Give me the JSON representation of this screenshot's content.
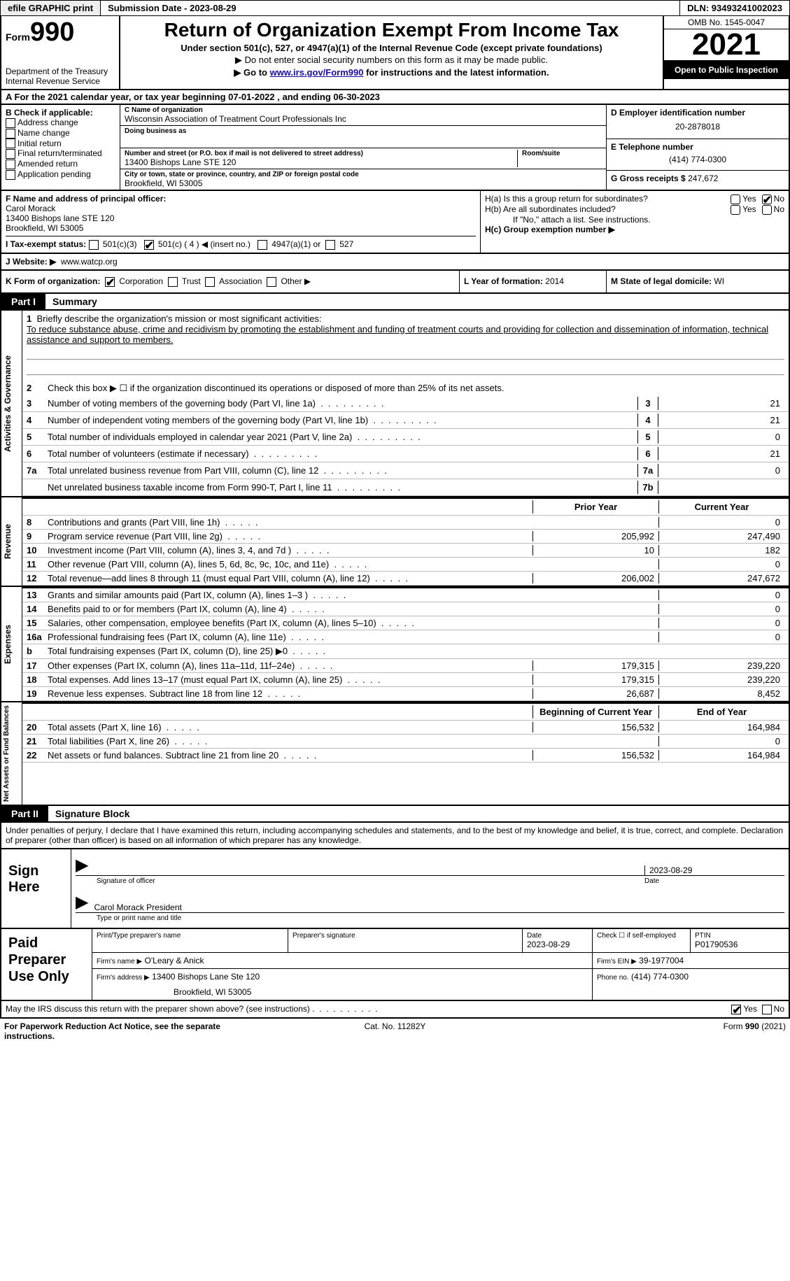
{
  "top": {
    "efile": "efile GRAPHIC print",
    "submission_label": "Submission Date - 2023-08-29",
    "dln": "DLN: 93493241002023"
  },
  "header": {
    "form_small": "Form",
    "form_big": "990",
    "title": "Return of Organization Exempt From Income Tax",
    "sub1": "Under section 501(c), 527, or 4947(a)(1) of the Internal Revenue Code (except private foundations)",
    "sub2": "▶ Do not enter social security numbers on this form as it may be made public.",
    "sub3_a": "▶ Go to ",
    "sub3_link": "www.irs.gov/Form990",
    "sub3_b": " for instructions and the latest information.",
    "dept": "Department of the Treasury",
    "irs": "Internal Revenue Service",
    "omb": "OMB No. 1545-0047",
    "year": "2021",
    "open": "Open to Public Inspection"
  },
  "row_a": "A For the 2021 calendar year, or tax year beginning 07-01-2022    , and ending 06-30-2023",
  "b": {
    "head": "B Check if applicable:",
    "items": [
      "Address change",
      "Name change",
      "Initial return",
      "Final return/terminated",
      "Amended return",
      "Application pending"
    ]
  },
  "c": {
    "name_lbl": "C Name of organization",
    "name": "Wisconsin Association of Treatment Court Professionals Inc",
    "dba_lbl": "Doing business as",
    "dba": "",
    "addr_lbl": "Number and street (or P.O. box if mail is not delivered to street address)",
    "addr": "13400 Bishops Lane STE 120",
    "room_lbl": "Room/suite",
    "room": "",
    "city_lbl": "City or town, state or province, country, and ZIP or foreign postal code",
    "city": "Brookfield, WI  53005"
  },
  "d": {
    "ein_lbl": "D Employer identification number",
    "ein": "20-2878018",
    "phone_lbl": "E Telephone number",
    "phone": "(414) 774-0300",
    "gross_lbl": "G Gross receipts $",
    "gross": "247,672"
  },
  "f": {
    "lbl": "F  Name and address of principal officer:",
    "name": "Carol Morack",
    "addr1": "13400 Bishops lane STE 120",
    "addr2": "Brookfield, WI  53005"
  },
  "h": {
    "a_lbl": "H(a)  Is this a group return for subordinates?",
    "b_lbl": "H(b)  Are all subordinates included?",
    "b_note": "If \"No,\" attach a list. See instructions.",
    "c_lbl": "H(c)  Group exemption number ▶",
    "yes": "Yes",
    "no": "No"
  },
  "i": {
    "lbl": "I   Tax-exempt status:",
    "c3": "501(c)(3)",
    "c": "501(c) ( 4 ) ◀ (insert no.)",
    "4947": "4947(a)(1) or",
    "527": "527"
  },
  "j": {
    "lbl": "J   Website: ▶",
    "val": "www.watcp.org"
  },
  "k": {
    "lbl": "K Form of organization:",
    "corp": "Corporation",
    "trust": "Trust",
    "assoc": "Association",
    "other": "Other ▶"
  },
  "l": {
    "lbl": "L Year of formation:",
    "val": "2014"
  },
  "m": {
    "lbl": "M State of legal domicile:",
    "val": "WI"
  },
  "part1": {
    "tag": "Part I",
    "title": "Summary"
  },
  "summary": {
    "side1": "Activities & Governance",
    "side2": "Revenue",
    "side3": "Expenses",
    "side4": "Net Assets or Fund Balances",
    "mission_lbl": "1  Briefly describe the organization's mission or most significant activities:",
    "mission": "To reduce substance abuse, crime and recidivism by promoting the establishment and funding of treatment courts and providing for collection and dissemination of information, technical assistance and support to members.",
    "line2": "Check this box ▶ ☐ if the organization discontinued its operations or disposed of more than 25% of its net assets.",
    "rows_a": [
      {
        "n": "3",
        "t": "Number of voting members of the governing body (Part VI, line 1a)",
        "c": "3",
        "v": "21"
      },
      {
        "n": "4",
        "t": "Number of independent voting members of the governing body (Part VI, line 1b)",
        "c": "4",
        "v": "21"
      },
      {
        "n": "5",
        "t": "Total number of individuals employed in calendar year 2021 (Part V, line 2a)",
        "c": "5",
        "v": "0"
      },
      {
        "n": "6",
        "t": "Total number of volunteers (estimate if necessary)",
        "c": "6",
        "v": "21"
      },
      {
        "n": "7a",
        "t": "Total unrelated business revenue from Part VIII, column (C), line 12",
        "c": "7a",
        "v": "0"
      },
      {
        "n": "",
        "t": "Net unrelated business taxable income from Form 990-T, Part I, line 11",
        "c": "7b",
        "v": ""
      }
    ],
    "head_prior": "Prior Year",
    "head_current": "Current Year",
    "rows_rev": [
      {
        "n": "8",
        "t": "Contributions and grants (Part VIII, line 1h)",
        "p": "",
        "c": "0"
      },
      {
        "n": "9",
        "t": "Program service revenue (Part VIII, line 2g)",
        "p": "205,992",
        "c": "247,490"
      },
      {
        "n": "10",
        "t": "Investment income (Part VIII, column (A), lines 3, 4, and 7d )",
        "p": "10",
        "c": "182"
      },
      {
        "n": "11",
        "t": "Other revenue (Part VIII, column (A), lines 5, 6d, 8c, 9c, 10c, and 11e)",
        "p": "",
        "c": "0"
      },
      {
        "n": "12",
        "t": "Total revenue—add lines 8 through 11 (must equal Part VIII, column (A), line 12)",
        "p": "206,002",
        "c": "247,672"
      }
    ],
    "rows_exp": [
      {
        "n": "13",
        "t": "Grants and similar amounts paid (Part IX, column (A), lines 1–3 )",
        "p": "",
        "c": "0"
      },
      {
        "n": "14",
        "t": "Benefits paid to or for members (Part IX, column (A), line 4)",
        "p": "",
        "c": "0"
      },
      {
        "n": "15",
        "t": "Salaries, other compensation, employee benefits (Part IX, column (A), lines 5–10)",
        "p": "",
        "c": "0"
      },
      {
        "n": "16a",
        "t": "Professional fundraising fees (Part IX, column (A), line 11e)",
        "p": "",
        "c": "0"
      },
      {
        "n": "b",
        "t": "Total fundraising expenses (Part IX, column (D), line 25) ▶0",
        "p": "shade",
        "c": "shade"
      },
      {
        "n": "17",
        "t": "Other expenses (Part IX, column (A), lines 11a–11d, 11f–24e)",
        "p": "179,315",
        "c": "239,220"
      },
      {
        "n": "18",
        "t": "Total expenses. Add lines 13–17 (must equal Part IX, column (A), line 25)",
        "p": "179,315",
        "c": "239,220"
      },
      {
        "n": "19",
        "t": "Revenue less expenses. Subtract line 18 from line 12",
        "p": "26,687",
        "c": "8,452"
      }
    ],
    "head_begin": "Beginning of Current Year",
    "head_end": "End of Year",
    "rows_net": [
      {
        "n": "20",
        "t": "Total assets (Part X, line 16)",
        "p": "156,532",
        "c": "164,984"
      },
      {
        "n": "21",
        "t": "Total liabilities (Part X, line 26)",
        "p": "",
        "c": "0"
      },
      {
        "n": "22",
        "t": "Net assets or fund balances. Subtract line 21 from line 20",
        "p": "156,532",
        "c": "164,984"
      }
    ]
  },
  "part2": {
    "tag": "Part II",
    "title": "Signature Block"
  },
  "sig": {
    "note": "Under penalties of perjury, I declare that I have examined this return, including accompanying schedules and statements, and to the best of my knowledge and belief, it is true, correct, and complete. Declaration of preparer (other than officer) is based on all information of which preparer has any knowledge.",
    "sign_here": "Sign Here",
    "sig_lbl": "Signature of officer",
    "date_lbl": "Date",
    "date_val": "2023-08-29",
    "name": "Carol Morack  President",
    "name_lbl": "Type or print name and title"
  },
  "prep": {
    "label": "Paid Preparer Use Only",
    "print_lbl": "Print/Type preparer's name",
    "print_val": "",
    "psig_lbl": "Preparer's signature",
    "pdate_lbl": "Date",
    "pdate_val": "2023-08-29",
    "check_lbl": "Check ☐ if self-employed",
    "ptin_lbl": "PTIN",
    "ptin_val": "P01790536",
    "firm_name_lbl": "Firm's name      ▶",
    "firm_name": "O'Leary & Anick",
    "firm_ein_lbl": "Firm's EIN ▶",
    "firm_ein": "39-1977004",
    "firm_addr_lbl": "Firm's address ▶",
    "firm_addr1": "13400 Bishops Lane Ste 120",
    "firm_addr2": "Brookfield, WI  53005",
    "phone_lbl": "Phone no.",
    "phone": "(414) 774-0300"
  },
  "discuss": {
    "txt": "May the IRS discuss this return with the preparer shown above? (see instructions)",
    "yes": "Yes",
    "no": "No"
  },
  "footer": {
    "l": "For Paperwork Reduction Act Notice, see the separate instructions.",
    "m": "Cat. No. 11282Y",
    "r": "Form 990 (2021)"
  }
}
